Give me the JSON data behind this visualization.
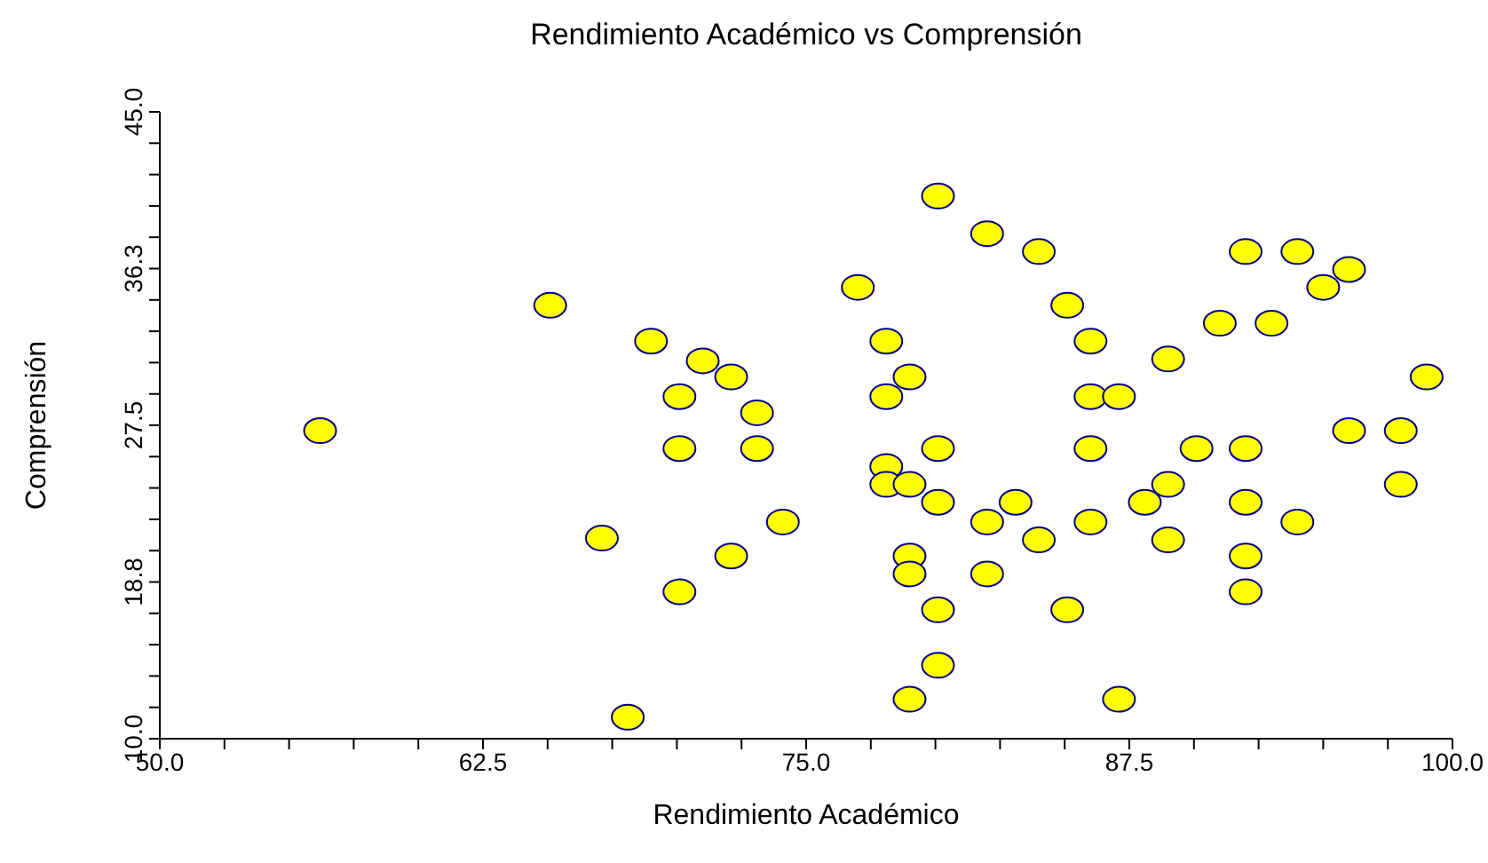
{
  "chart_data": {
    "type": "scatter",
    "title": "Rendimiento Académico vs Comprensión",
    "xlabel": "Rendimiento Académico",
    "ylabel": "Comprensión",
    "marker": "circle",
    "grid": false,
    "legend": false,
    "xlim": [
      50,
      100
    ],
    "ylim": [
      10,
      45
    ],
    "xticks": [
      {
        "value": 50,
        "label": "50.0"
      },
      {
        "value": 52.5,
        "label": null
      },
      {
        "value": 55,
        "label": null
      },
      {
        "value": 57.5,
        "label": null
      },
      {
        "value": 60,
        "label": null
      },
      {
        "value": 62.5,
        "label": "62.5"
      },
      {
        "value": 65,
        "label": null
      },
      {
        "value": 67.5,
        "label": null
      },
      {
        "value": 70,
        "label": null
      },
      {
        "value": 72.5,
        "label": null
      },
      {
        "value": 75,
        "label": "75.0"
      },
      {
        "value": 77.5,
        "label": null
      },
      {
        "value": 80,
        "label": null
      },
      {
        "value": 82.5,
        "label": null
      },
      {
        "value": 85,
        "label": null
      },
      {
        "value": 87.5,
        "label": "87.5"
      },
      {
        "value": 90,
        "label": null
      },
      {
        "value": 92.5,
        "label": null
      },
      {
        "value": 95,
        "label": null
      },
      {
        "value": 97.5,
        "label": null
      },
      {
        "value": 100,
        "label": "100.0"
      }
    ],
    "yticks": [
      {
        "value": 10,
        "label": "10.0"
      },
      {
        "value": 11.75,
        "label": null
      },
      {
        "value": 13.5,
        "label": null
      },
      {
        "value": 15.25,
        "label": null
      },
      {
        "value": 17,
        "label": null
      },
      {
        "value": 18.75,
        "label": "18.8"
      },
      {
        "value": 20.5,
        "label": null
      },
      {
        "value": 22.25,
        "label": null
      },
      {
        "value": 24,
        "label": null
      },
      {
        "value": 25.75,
        "label": null
      },
      {
        "value": 27.5,
        "label": "27.5"
      },
      {
        "value": 29.25,
        "label": null
      },
      {
        "value": 31,
        "label": null
      },
      {
        "value": 32.75,
        "label": null
      },
      {
        "value": 34.5,
        "label": null
      },
      {
        "value": 36.25,
        "label": "36.3"
      },
      {
        "value": 38,
        "label": null
      },
      {
        "value": 39.75,
        "label": null
      },
      {
        "value": 41.5,
        "label": null
      },
      {
        "value": 43.25,
        "label": null
      },
      {
        "value": 45,
        "label": "45.0"
      }
    ],
    "series": [
      {
        "color": "#ffff00",
        "x": [
          56.2,
          65.1,
          67.1,
          68.1,
          69.0,
          70.1,
          70.1,
          70.1,
          71.0,
          72.1,
          72.1,
          73.1,
          73.1,
          74.1,
          77.0,
          78.1,
          78.1,
          78.1,
          78.1,
          79.0,
          79.0,
          79.0,
          79.0,
          79.0,
          80.1,
          80.1,
          80.1,
          80.1,
          80.1,
          82.0,
          82.0,
          82.0,
          83.1,
          84.0,
          84.0,
          85.1,
          85.1,
          86.0,
          86.0,
          86.0,
          86.0,
          87.1,
          87.1,
          88.1,
          89.0,
          89.0,
          89.0,
          90.1,
          91.0,
          92.0,
          92.0,
          92.0,
          92.0,
          92.0,
          93.0,
          94.0,
          94.0,
          95.0,
          96.0,
          96.0,
          98.0,
          98.0,
          99.0
        ],
        "values": [
          27.2,
          34.2,
          21.2,
          11.2,
          32.2,
          29.1,
          26.2,
          18.2,
          31.1,
          30.2,
          20.2,
          28.2,
          26.2,
          22.1,
          35.2,
          32.2,
          29.1,
          25.2,
          24.2,
          30.2,
          24.2,
          20.2,
          19.2,
          12.2,
          40.3,
          26.2,
          23.2,
          17.2,
          14.1,
          38.2,
          22.1,
          19.2,
          23.2,
          37.2,
          21.1,
          34.2,
          17.2,
          32.2,
          29.1,
          26.2,
          22.1,
          29.1,
          12.2,
          23.2,
          31.2,
          24.2,
          21.1,
          26.2,
          33.2,
          37.2,
          26.2,
          23.2,
          20.2,
          18.2,
          33.2,
          37.2,
          22.1,
          35.2,
          36.2,
          27.2,
          27.2,
          24.2,
          30.2
        ]
      }
    ]
  }
}
